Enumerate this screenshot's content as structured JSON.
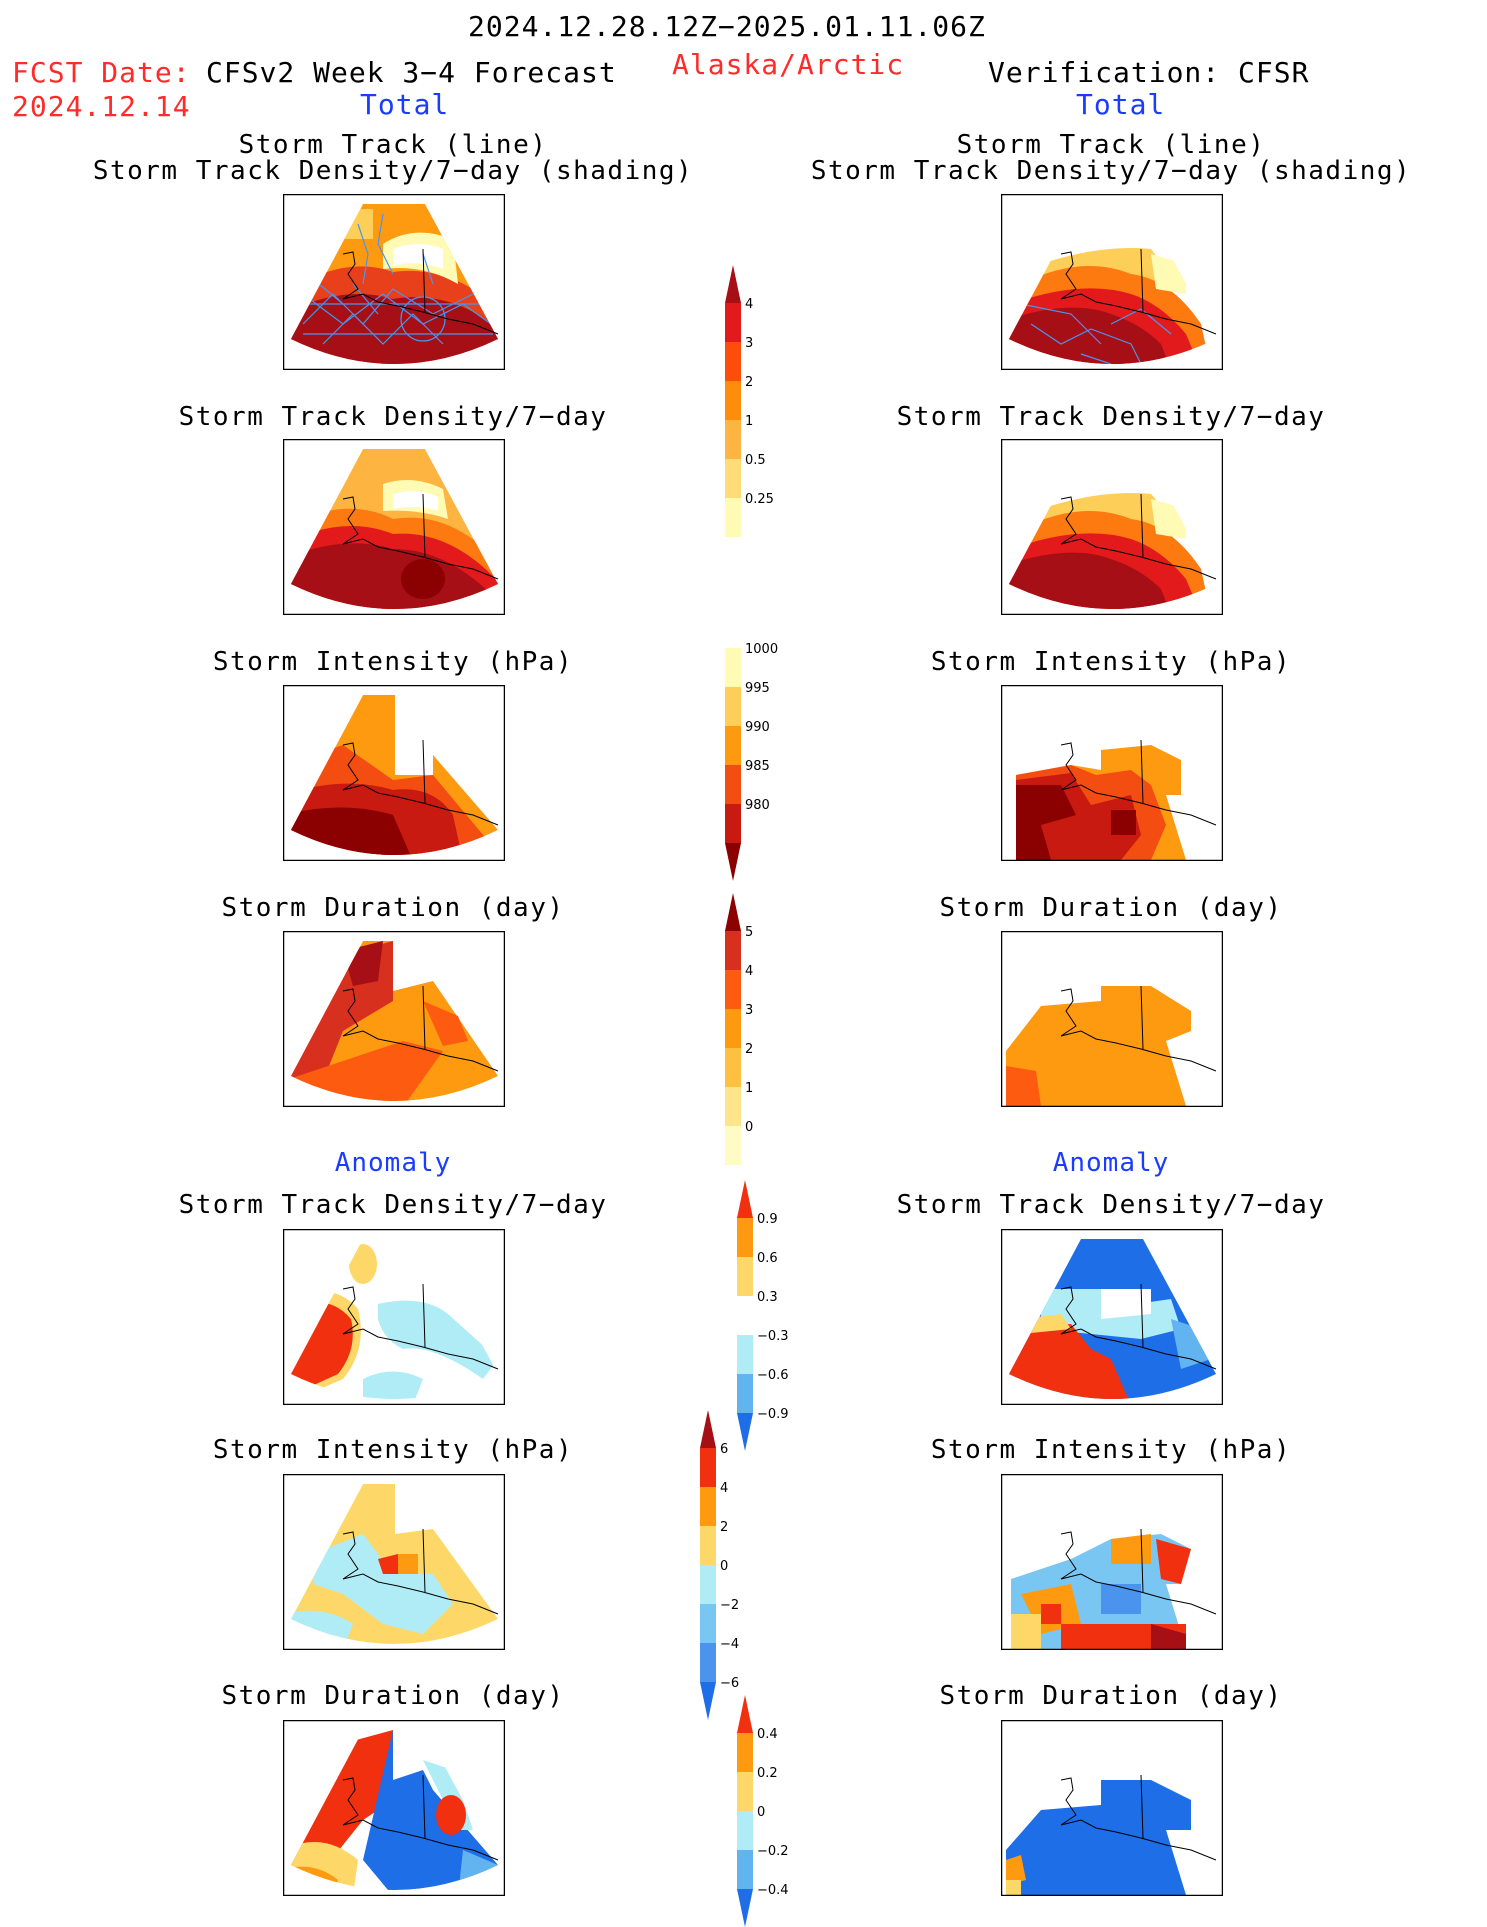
{
  "header": {
    "period": "2024.12.28.12Z−2025.01.11.06Z",
    "fcst_label": "FCST Date:",
    "fcst_date": "2024.12.14",
    "model": "CFSv2 Week 3−4 Forecast",
    "region": "Alaska/Arctic",
    "verification": "Verification: CFSR",
    "left_section": "Total",
    "right_section": "Total"
  },
  "titles": {
    "track_line": "Storm Track (line)",
    "track_shading": "Storm Track Density/7−day (shading)",
    "density": "Storm Track Density/7−day",
    "intensity": "Storm Intensity (hPa)",
    "duration": "Storm Duration (day)",
    "anomaly": "Anomaly"
  },
  "colorbars": [
    {
      "id": "density_total",
      "labels": [
        "4",
        "3",
        "2",
        "1",
        "0.5",
        "0.25"
      ],
      "colors": [
        "#a50f15",
        "#e31a1c",
        "#fc4e0a",
        "#fd8d0a",
        "#fdb440",
        "#fedc7a",
        "#fffbb4"
      ]
    },
    {
      "id": "intensity_total",
      "labels": [
        "1000",
        "995",
        "990",
        "985",
        "980"
      ],
      "colors": [
        "#fffbb4",
        "#fdcf58",
        "#fd9a10",
        "#f44d12",
        "#c81a10",
        "#8b0000"
      ]
    },
    {
      "id": "duration_total",
      "labels": [
        "5",
        "4",
        "3",
        "2",
        "1",
        "0"
      ],
      "colors": [
        "#8b0000",
        "#d7301f",
        "#fc5b10",
        "#fd9a10",
        "#fdc040",
        "#fee48a",
        "#fffbc4"
      ]
    },
    {
      "id": "density_anom",
      "labels": [
        "0.9",
        "0.6",
        "0.3",
        "−0.3",
        "−0.6",
        "−0.9"
      ],
      "colors": [
        "#f0300f",
        "#fd9a10",
        "#fdd868",
        "#ffffff",
        "#b0ecf6",
        "#62b4f0",
        "#1e6ee8"
      ]
    },
    {
      "id": "intensity_anom",
      "labels": [
        "6",
        "4",
        "2",
        "0",
        "−2",
        "−4",
        "−6"
      ],
      "colors": [
        "#a50f15",
        "#f0300f",
        "#fd9a10",
        "#fdd868",
        "#b0ecf6",
        "#7ac6f2",
        "#4a94ee",
        "#1e6ee8"
      ]
    },
    {
      "id": "duration_anom",
      "labels": [
        "0.4",
        "0.2",
        "0",
        "−0.2",
        "−0.4"
      ],
      "colors": [
        "#f0300f",
        "#fd9a10",
        "#fdd868",
        "#b0ecf6",
        "#62b4f0",
        "#1e6ee8"
      ]
    }
  ]
}
